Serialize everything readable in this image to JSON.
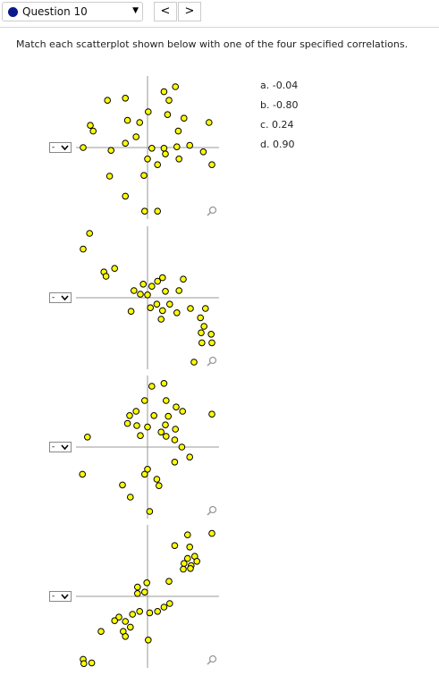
{
  "header": {
    "question": "Question 10",
    "prev": "<",
    "next": ">"
  },
  "instruction": "Match each scatterplot shown below with one of the four specified correlations.",
  "options": [
    "a. -0.04",
    "b. -0.80",
    "c. 0.24",
    "d. 0.90"
  ],
  "plots": [
    {
      "type": "scatter",
      "answer": "-",
      "xlim": [
        -10,
        10
      ],
      "ylim": [
        -10,
        10
      ],
      "x": [
        3.9,
        2.3,
        -3.1,
        -5.6,
        3.0,
        0.1,
        -2.8,
        -1.1,
        2.8,
        5.1,
        8.6,
        -8.0,
        -7.6,
        4.3,
        -1.6,
        -3.1,
        -9.0,
        -5.1,
        0.6,
        2.3,
        4.1,
        5.9,
        7.8,
        2.5,
        0,
        1.4,
        4.4,
        9.0,
        -5.3,
        -0.5,
        -3.1,
        -0.4,
        1.4
      ],
      "y": [
        8.5,
        7.8,
        6.9,
        6.6,
        6.6,
        5.0,
        3.8,
        3.5,
        4.6,
        4.1,
        3.5,
        3.1,
        2.3,
        2.3,
        1.5,
        0.6,
        0,
        -0.4,
        -0.1,
        -0.1,
        0.1,
        0.3,
        -0.6,
        -0.9,
        -1.6,
        -2.4,
        -1.6,
        -2.4,
        -4.0,
        -3.9,
        -6.8,
        -8.9,
        -8.9
      ]
    },
    {
      "type": "scatter",
      "answer": "-",
      "xlim": [
        -10,
        10
      ],
      "ylim": [
        -10,
        10
      ],
      "x": [
        -8.1,
        -9.0,
        -4.6,
        -6.1,
        -5.8,
        2.1,
        5.0,
        1.4,
        -0.6,
        0.6,
        -1.9,
        -1.0,
        0,
        2.5,
        4.4,
        1.3,
        3.1,
        0.4,
        2.1,
        4.1,
        -2.3,
        6.0,
        8.1,
        1.9,
        7.4,
        7.9,
        7.5,
        7.6,
        9.0,
        8.9,
        6.5
      ],
      "y": [
        9.0,
        6.8,
        4.1,
        3.6,
        3.0,
        2.8,
        2.6,
        2.3,
        1.9,
        1.6,
        1.0,
        0.5,
        0.4,
        0.9,
        1.0,
        -0.9,
        -0.9,
        -1.4,
        -1.8,
        -2.1,
        -1.9,
        -1.5,
        -1.5,
        -3.0,
        -2.8,
        -4.0,
        -4.9,
        -6.3,
        -6.3,
        -5.1,
        -9.0
      ]
    },
    {
      "type": "scatter",
      "answer": "-",
      "xlim": [
        -10,
        10
      ],
      "ylim": [
        -10,
        10
      ],
      "x": [
        2.3,
        0.6,
        2.6,
        -0.4,
        4.0,
        4.9,
        -1.6,
        -2.5,
        0.9,
        2.9,
        9.0,
        -2.8,
        -1.5,
        0,
        2.5,
        3.9,
        -1.0,
        2.6,
        3.8,
        1.9,
        -8.4,
        4.8,
        5.9,
        3.8,
        0,
        -0.4,
        1.3,
        1.6,
        -9.1,
        -3.5,
        -2.4,
        0.3
      ],
      "y": [
        8.9,
        8.5,
        6.5,
        6.5,
        5.6,
        5.0,
        5.0,
        4.4,
        4.4,
        4.3,
        4.6,
        3.3,
        3.0,
        2.8,
        3.1,
        2.5,
        1.6,
        1.5,
        1.0,
        2.1,
        1.4,
        0,
        -1.4,
        -2.1,
        -3.1,
        -3.8,
        -4.5,
        -5.4,
        -3.8,
        -5.3,
        -7.0,
        -9.0
      ]
    },
    {
      "type": "scatter",
      "answer": "-",
      "xlim": [
        -10,
        10
      ],
      "ylim": [
        -10,
        10
      ],
      "x": [
        9.0,
        5.6,
        3.8,
        5.9,
        6.6,
        5.6,
        6.9,
        6.1,
        5.1,
        5.0,
        6.0,
        3.0,
        -0.1,
        -1.4,
        -0.4,
        -1.4,
        3.1,
        2.3,
        1.4,
        0.3,
        -1.1,
        -2.1,
        -4.0,
        -4.6,
        -3.1,
        -2.4,
        -3.4,
        -6.5,
        -3.1,
        0.1,
        -9.0,
        -7.8,
        -8.9
      ],
      "y": [
        8.8,
        8.6,
        7.1,
        6.9,
        5.6,
        5.3,
        4.9,
        4.3,
        4.6,
        3.8,
        3.9,
        2.1,
        1.9,
        1.3,
        0.6,
        0.4,
        -1.0,
        -1.5,
        -2.1,
        -2.3,
        -2.1,
        -2.5,
        -2.9,
        -3.4,
        -3.5,
        -4.3,
        -4.9,
        -4.9,
        -5.6,
        -6.1,
        -8.8,
        -9.3,
        -9.4
      ]
    }
  ]
}
